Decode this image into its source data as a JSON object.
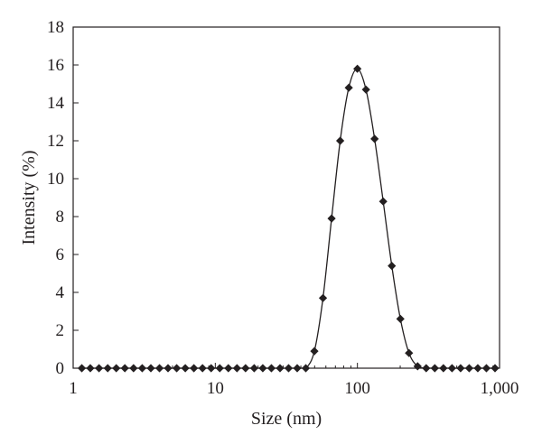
{
  "chart_data": {
    "type": "line",
    "xscale": "log",
    "xlabel": "Size (nm)",
    "ylabel": "Intensity (%)",
    "xlim": [
      1,
      1000
    ],
    "ylim": [
      0,
      18
    ],
    "xticks": [
      1,
      10,
      100,
      1000
    ],
    "xtick_labels": [
      "1",
      "10",
      "100",
      "1,000"
    ],
    "yticks": [
      0,
      2,
      4,
      6,
      8,
      10,
      12,
      14,
      16,
      18
    ],
    "ytick_labels": [
      "0",
      "2",
      "4",
      "6",
      "8",
      "10",
      "12",
      "14",
      "16",
      "18"
    ],
    "grid": false,
    "legend": "none",
    "marker": "diamond",
    "colors": {
      "line": "#231f20",
      "marker": "#231f20",
      "axis": "#231f20"
    },
    "series": [
      {
        "x": [
          1.15,
          1.32,
          1.52,
          1.75,
          2.01,
          2.31,
          2.66,
          3.06,
          3.52,
          4.05,
          4.65,
          5.35,
          6.15,
          7.07,
          8.13,
          9.35,
          10.75,
          12.36,
          14.21,
          16.33,
          18.78,
          21.59,
          24.82,
          28.53,
          32.79,
          37.7,
          43.33,
          49.79,
          57.24,
          65.8,
          75.64,
          86.95,
          99.95,
          114.9,
          132.08,
          151.83,
          174.53,
          200.63,
          230.63,
          265.13,
          304.77,
          350.34,
          402.73,
          462.95,
          532.17,
          611.74,
          703.22,
          808.37,
          929.24
        ],
        "y": [
          0,
          0,
          0,
          0,
          0,
          0,
          0,
          0,
          0,
          0,
          0,
          0,
          0,
          0,
          0,
          0,
          0,
          0,
          0,
          0,
          0,
          0,
          0,
          0,
          0,
          0,
          0,
          0.9,
          3.7,
          7.9,
          12,
          14.8,
          15.8,
          14.7,
          12.1,
          8.8,
          5.4,
          2.6,
          0.8,
          0.1,
          0,
          0,
          0,
          0,
          0,
          0,
          0,
          0,
          0
        ]
      }
    ]
  }
}
